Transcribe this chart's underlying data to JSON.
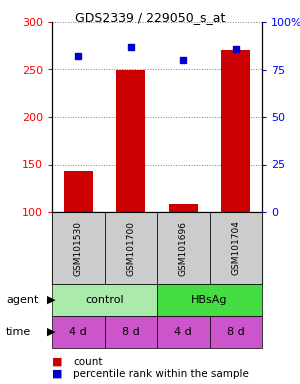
{
  "title": "GDS2339 / 229050_s_at",
  "samples": [
    "GSM101530",
    "GSM101700",
    "GSM101696",
    "GSM101704"
  ],
  "counts": [
    143,
    250,
    108,
    271
  ],
  "percentiles": [
    82,
    87,
    80,
    86
  ],
  "ylim_left": [
    100,
    300
  ],
  "ylim_right": [
    0,
    100
  ],
  "yticks_left": [
    100,
    150,
    200,
    250,
    300
  ],
  "yticks_right": [
    0,
    25,
    50,
    75,
    100
  ],
  "bar_color": "#cc0000",
  "dot_color": "#0000cc",
  "agent_groups": [
    {
      "label": "control",
      "cols": [
        0,
        1
      ],
      "color": "#aaeaaa"
    },
    {
      "label": "HBsAg",
      "cols": [
        2,
        3
      ],
      "color": "#44dd44"
    }
  ],
  "time_labels": [
    "4 d",
    "8 d",
    "4 d",
    "8 d"
  ],
  "time_color": "#cc55cc",
  "sample_bg_color": "#cccccc",
  "legend_count_color": "#cc0000",
  "legend_dot_color": "#0000cc",
  "grid_color": "#777777"
}
